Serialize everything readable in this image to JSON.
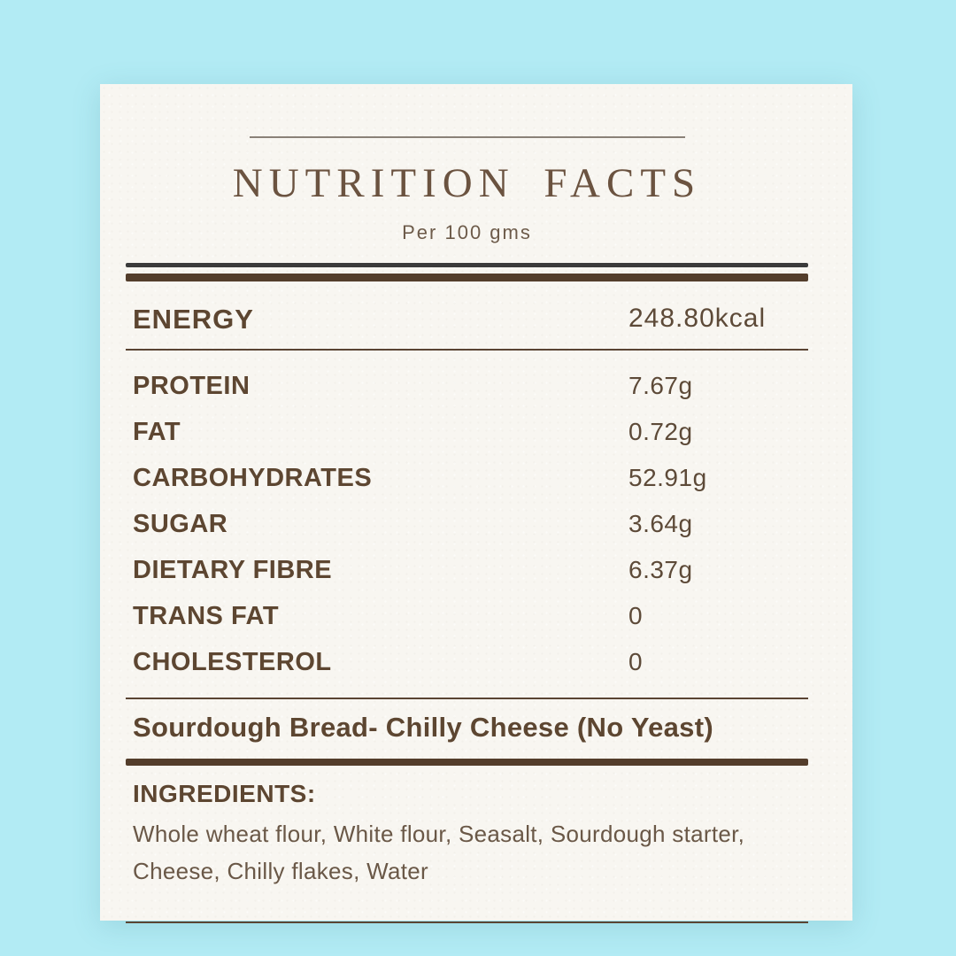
{
  "colors": {
    "background": "#b2ebf4",
    "card": "#f8f6f1",
    "text_brown": "#5d4631",
    "dark_rule": "#3b3b3b",
    "brown_rule": "#533d2b"
  },
  "header": {
    "title": "NUTRITION FACTS",
    "subtitle": "Per 100 gms"
  },
  "energy": {
    "label": "ENERGY",
    "value": "248.80kcal"
  },
  "nutrients": [
    {
      "label": "PROTEIN",
      "value": "7.67g"
    },
    {
      "label": "FAT",
      "value": "0.72g"
    },
    {
      "label": "CARBOHYDRATES",
      "value": "52.91g"
    },
    {
      "label": "SUGAR",
      "value": "3.64g"
    },
    {
      "label": "DIETARY FIBRE",
      "value": "6.37g"
    },
    {
      "label": "TRANS FAT",
      "value": "0"
    },
    {
      "label": "CHOLESTEROL",
      "value": "0"
    }
  ],
  "product": {
    "name": "Sourdough Bread- Chilly Cheese (No Yeast)"
  },
  "ingredients": {
    "heading": "INGREDIENTS:",
    "list": "Whole wheat flour, White flour, Seasalt, Sourdough starter, Cheese, Chilly flakes, Water"
  }
}
